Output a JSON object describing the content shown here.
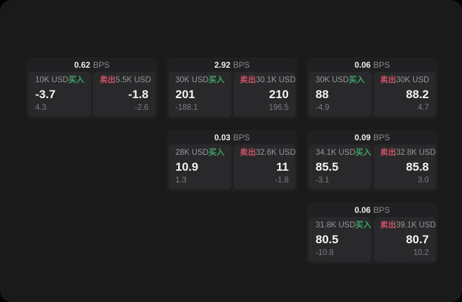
{
  "theme": {
    "outer_background": "#000000",
    "surface_background": "#1a1a1b",
    "card_background": "#202022",
    "panel_background": "#29292b",
    "buy_color": "#3da265",
    "sell_color": "#cd5364",
    "primary_text": "#f4f4f5",
    "secondary_text": "#97979a",
    "tertiary_text": "#7d7d81"
  },
  "labels": {
    "bps_suffix": "BPS",
    "buy": "买入",
    "sell": "卖出"
  },
  "cards": [
    {
      "row": 1,
      "col": 1,
      "spread_bps": "0.62",
      "buy": {
        "notional": "10K USD",
        "price": "-3.7",
        "sub": "4.3"
      },
      "sell": {
        "notional": "5.5K USD",
        "price": "-1.8",
        "sub": "-2.6"
      }
    },
    {
      "row": 1,
      "col": 2,
      "spread_bps": "2.92",
      "buy": {
        "notional": "30K USD",
        "price": "201",
        "sub": "-188.1"
      },
      "sell": {
        "notional": "30.1K USD",
        "price": "210",
        "sub": "196.5"
      }
    },
    {
      "row": 1,
      "col": 3,
      "spread_bps": "0.06",
      "buy": {
        "notional": "30K USD",
        "price": "88",
        "sub": "-4.9"
      },
      "sell": {
        "notional": "30K USD",
        "price": "88.2",
        "sub": "4.7"
      }
    },
    {
      "row": 2,
      "col": 2,
      "spread_bps": "0.03",
      "buy": {
        "notional": "28K USD",
        "price": "10.9",
        "sub": "1.3"
      },
      "sell": {
        "notional": "32.6K USD",
        "price": "11",
        "sub": "-1.8"
      }
    },
    {
      "row": 2,
      "col": 3,
      "spread_bps": "0.09",
      "buy": {
        "notional": "34.1K USD",
        "price": "85.5",
        "sub": "-3.1"
      },
      "sell": {
        "notional": "32.8K USD",
        "price": "85.8",
        "sub": "3.0"
      }
    },
    {
      "row": 3,
      "col": 3,
      "spread_bps": "0.06",
      "buy": {
        "notional": "31.8K USD",
        "price": "80.5",
        "sub": "-10.8"
      },
      "sell": {
        "notional": "39.1K USD",
        "price": "80.7",
        "sub": "10.2"
      }
    }
  ]
}
